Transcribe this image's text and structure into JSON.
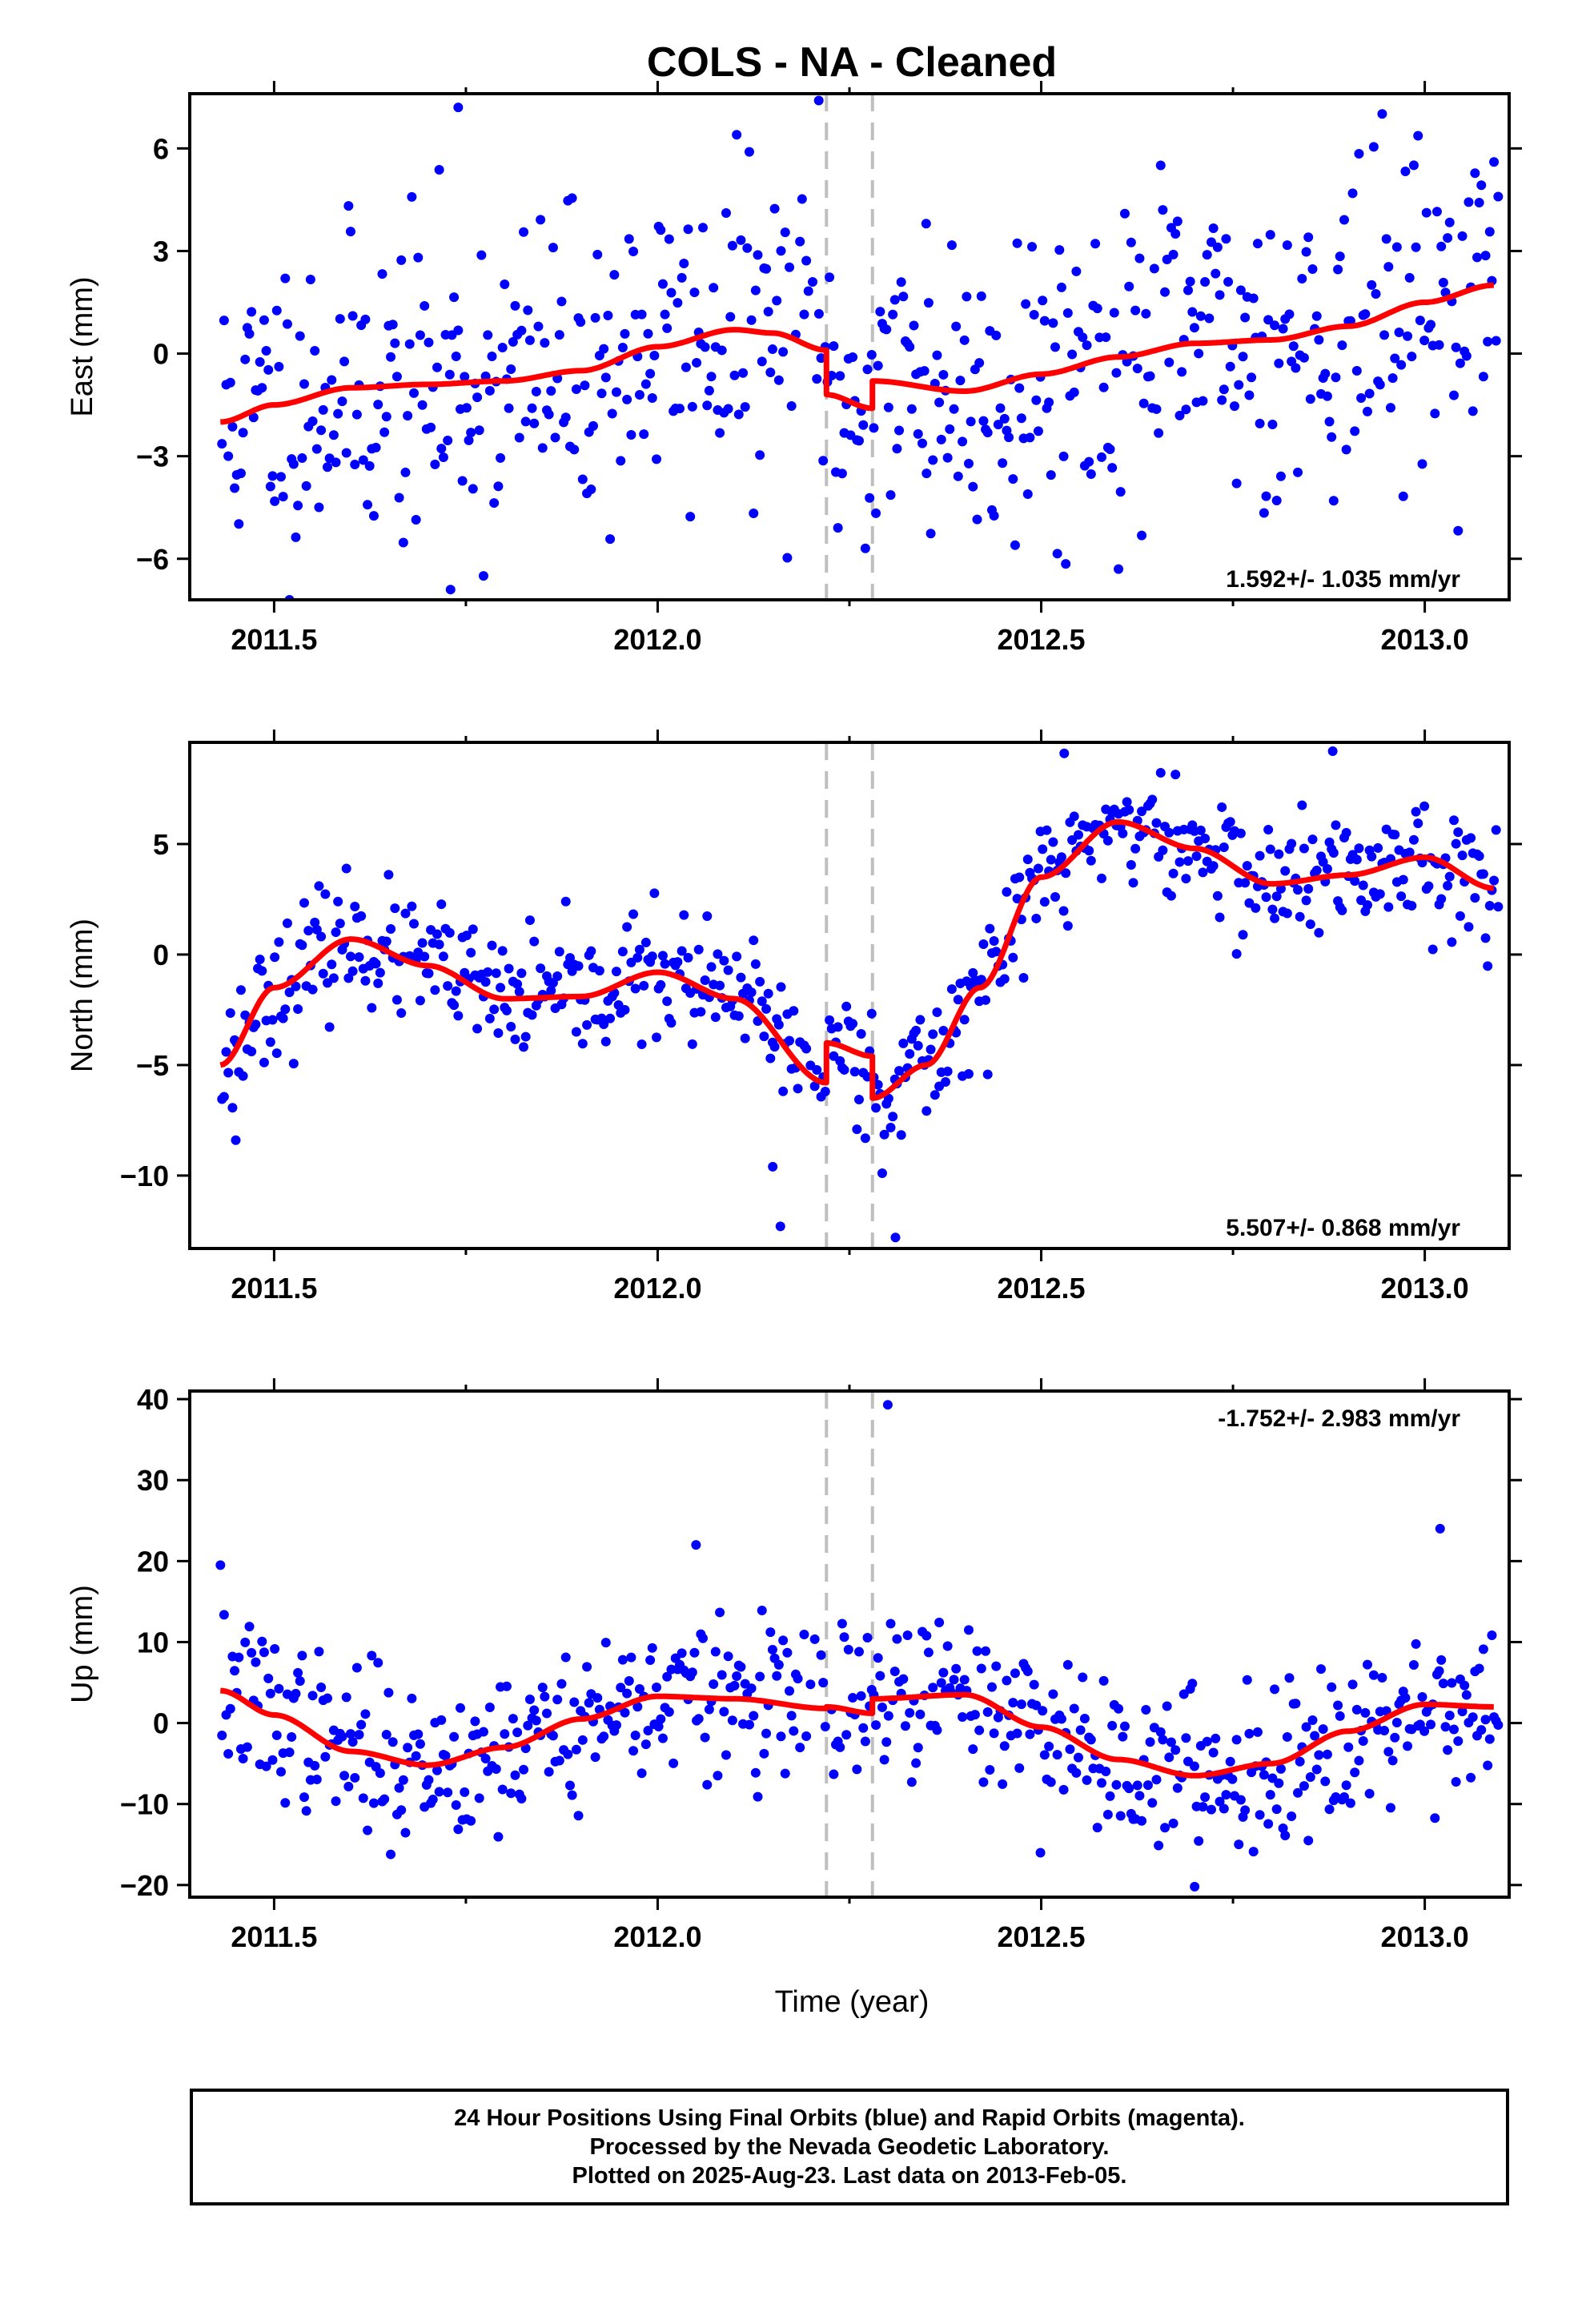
{
  "title": "COLS  - NA - Cleaned",
  "xlabel": "Time (year)",
  "footer": {
    "line1": "24 Hour Positions Using Final Orbits (blue) and Rapid Orbits (magenta).",
    "line2": "Processed by the Nevada Geodetic Laboratory.",
    "line3": "Plotted on 2025-Aug-23. Last data on 2013-Feb-05."
  },
  "colors": {
    "final_orbits": "#0000ff",
    "fit": "#ff0000",
    "event_line": "#bfbfbf"
  },
  "chart_data": [
    {
      "type": "scatter",
      "ylabel": "East (mm)",
      "rate_text": "1.592+/- 1.035 mm/yr",
      "xlim": [
        2011.39,
        2013.11
      ],
      "ylim": [
        -7.2,
        7.6
      ],
      "x_ticks": [
        2011.5,
        2012.0,
        2012.5,
        2013.0
      ],
      "x_tick_labels": [
        "2011.5",
        "2012.0",
        "2012.5",
        "2013.0"
      ],
      "y_ticks": [
        -6,
        -3,
        0,
        3,
        6
      ],
      "y_tick_labels": [
        "−6",
        "−3",
        "0",
        "3",
        "6"
      ],
      "event_lines": [
        2012.22,
        2012.28
      ],
      "fit_knots": [
        [
          2011.43,
          -2.0
        ],
        [
          2011.5,
          -1.5
        ],
        [
          2011.6,
          -1.0
        ],
        [
          2011.7,
          -0.9
        ],
        [
          2011.8,
          -0.8
        ],
        [
          2011.9,
          -0.5
        ],
        [
          2012.0,
          0.2
        ],
        [
          2012.1,
          0.7
        ],
        [
          2012.15,
          0.6
        ],
        [
          2012.22,
          0.1
        ],
        [
          2012.22,
          -1.2
        ],
        [
          2012.28,
          -1.6
        ],
        [
          2012.28,
          -0.8
        ],
        [
          2012.4,
          -1.1
        ],
        [
          2012.5,
          -0.6
        ],
        [
          2012.6,
          -0.1
        ],
        [
          2012.7,
          0.3
        ],
        [
          2012.8,
          0.4
        ],
        [
          2012.9,
          0.8
        ],
        [
          2013.0,
          1.5
        ],
        [
          2013.09,
          2.0
        ]
      ],
      "scatter_sd": 2.3,
      "seed": 11,
      "outliers": [
        [
          2011.74,
          7.2
        ],
        [
          2012.21,
          7.4
        ],
        [
          2011.73,
          -6.9
        ],
        [
          2012.35,
          3.8
        ]
      ]
    },
    {
      "type": "scatter",
      "ylabel": "North (mm)",
      "rate_text": "5.507+/- 0.868 mm/yr",
      "xlim": [
        2011.39,
        2013.11
      ],
      "ylim": [
        -13.3,
        9.6
      ],
      "x_ticks": [
        2011.5,
        2012.0,
        2012.5,
        2013.0
      ],
      "x_tick_labels": [
        "2011.5",
        "2012.0",
        "2012.5",
        "2013.0"
      ],
      "y_ticks": [
        -10,
        -5,
        0,
        5
      ],
      "y_tick_labels": [
        "−10",
        "−5",
        "0",
        "5"
      ],
      "event_lines": [
        2012.22,
        2012.28
      ],
      "fit_knots": [
        [
          2011.43,
          -5.0
        ],
        [
          2011.5,
          -1.5
        ],
        [
          2011.6,
          0.7
        ],
        [
          2011.7,
          -0.5
        ],
        [
          2011.8,
          -2.0
        ],
        [
          2011.9,
          -1.9
        ],
        [
          2012.0,
          -0.8
        ],
        [
          2012.1,
          -2.0
        ],
        [
          2012.22,
          -5.8
        ],
        [
          2012.22,
          -4.0
        ],
        [
          2012.28,
          -4.6
        ],
        [
          2012.28,
          -6.5
        ],
        [
          2012.35,
          -5.0
        ],
        [
          2012.42,
          -1.5
        ],
        [
          2012.5,
          3.5
        ],
        [
          2012.6,
          6.0
        ],
        [
          2012.7,
          4.8
        ],
        [
          2012.8,
          3.2
        ],
        [
          2012.9,
          3.6
        ],
        [
          2013.0,
          4.4
        ],
        [
          2013.09,
          3.0
        ]
      ],
      "scatter_sd": 1.4,
      "seed": 23,
      "outliers": [
        [
          2011.45,
          -8.4
        ],
        [
          2012.16,
          -12.3
        ],
        [
          2012.31,
          -12.8
        ],
        [
          2012.53,
          9.1
        ],
        [
          2012.88,
          9.2
        ],
        [
          2012.15,
          -9.6
        ]
      ]
    },
    {
      "type": "scatter",
      "ylabel": "Up (mm)",
      "rate_text": "-1.752+/- 2.983 mm/yr",
      "xlim": [
        2011.39,
        2013.11
      ],
      "ylim": [
        -21.5,
        41.0
      ],
      "x_ticks": [
        2011.5,
        2012.0,
        2012.5,
        2013.0
      ],
      "x_tick_labels": [
        "2011.5",
        "2012.0",
        "2012.5",
        "2013.0"
      ],
      "y_ticks": [
        -20,
        -10,
        0,
        10,
        20,
        30,
        40
      ],
      "y_tick_labels": [
        "−20",
        "−10",
        "0",
        "10",
        "20",
        "30",
        "40"
      ],
      "event_lines": [
        2012.22,
        2012.28
      ],
      "fit_knots": [
        [
          2011.43,
          4.0
        ],
        [
          2011.5,
          1.0
        ],
        [
          2011.6,
          -3.5
        ],
        [
          2011.7,
          -5.2
        ],
        [
          2011.8,
          -3.0
        ],
        [
          2011.9,
          0.5
        ],
        [
          2012.0,
          3.3
        ],
        [
          2012.1,
          3.0
        ],
        [
          2012.22,
          1.8
        ],
        [
          2012.22,
          2.0
        ],
        [
          2012.28,
          1.2
        ],
        [
          2012.28,
          3.0
        ],
        [
          2012.4,
          3.5
        ],
        [
          2012.5,
          -0.5
        ],
        [
          2012.6,
          -4.5
        ],
        [
          2012.7,
          -6.5
        ],
        [
          2012.8,
          -5.0
        ],
        [
          2012.9,
          -1.0
        ],
        [
          2013.0,
          2.3
        ],
        [
          2013.09,
          2.0
        ]
      ],
      "scatter_sd": 5.0,
      "seed": 37,
      "outliers": [
        [
          2012.3,
          39.3
        ],
        [
          2011.43,
          19.5
        ],
        [
          2012.05,
          22.0
        ],
        [
          2013.02,
          24.0
        ],
        [
          2012.7,
          -20.2
        ]
      ]
    }
  ]
}
